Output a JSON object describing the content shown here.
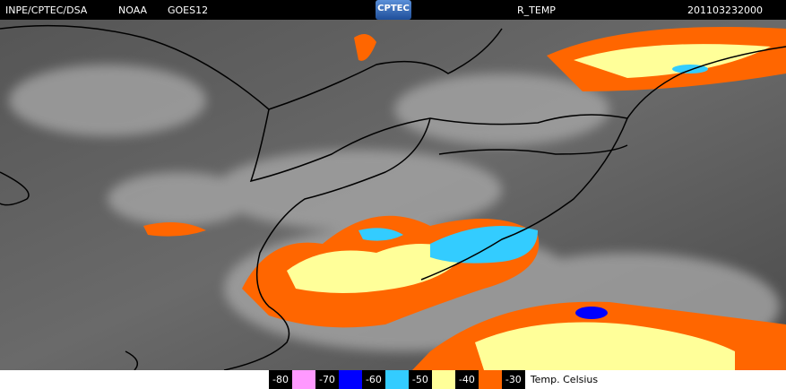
{
  "header": {
    "source": "INPE/CPTEC/DSA",
    "agency": "NOAA",
    "satellite": "GOES12",
    "logo": "CPTEC",
    "product": "R_TEMP",
    "timestamp": "201103232000"
  },
  "legend": {
    "items": [
      {
        "label": "-80",
        "color": "#ff99ff"
      },
      {
        "label": "-70",
        "color": "#0000ff"
      },
      {
        "label": "-60",
        "color": "#33ccff"
      },
      {
        "label": "-50",
        "color": "#ffff99"
      },
      {
        "label": "-40",
        "color": "#ff6600"
      },
      {
        "label": "-30",
        "color": null
      }
    ],
    "unit": "Temp. Celsius"
  }
}
